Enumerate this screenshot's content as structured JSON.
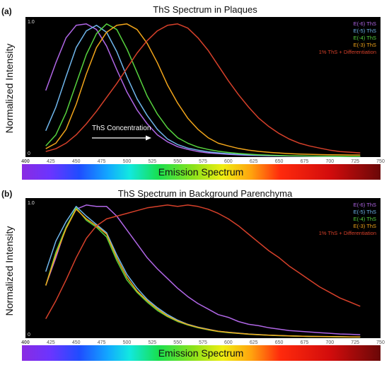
{
  "colors": {
    "E-6": "#b066e6",
    "E-5": "#6fb6ec",
    "E-4": "#56d23e",
    "E-3": "#f2a51a",
    "diff": "#d6402a"
  },
  "spectrum_label": "Emission Spectrum",
  "chart_data": [
    {
      "type": "line",
      "panel": "(a)",
      "title": "ThS Spectrum in Plaques",
      "xlabel": "",
      "ylabel": "Normalized Intensity",
      "xlim": [
        400,
        750
      ],
      "ylim": [
        0,
        1.0
      ],
      "x_ticks": [
        "400",
        "425",
        "450",
        "475",
        "500",
        "525",
        "550",
        "575",
        "600",
        "625",
        "650",
        "675",
        "700",
        "725",
        "750"
      ],
      "y_ticks": [
        "1.0",
        "0"
      ],
      "annotation": "ThS Concentration",
      "legend_position": "top-right",
      "x": [
        420,
        430,
        440,
        450,
        460,
        470,
        480,
        490,
        500,
        510,
        520,
        530,
        540,
        550,
        560,
        570,
        580,
        590,
        600,
        610,
        620,
        630,
        640,
        650,
        660,
        670,
        680,
        690,
        700,
        710,
        720,
        730
      ],
      "series": [
        {
          "name": "E(-6) ThS",
          "key": "E-6",
          "values": [
            0.48,
            0.68,
            0.86,
            0.95,
            0.96,
            0.92,
            0.8,
            0.63,
            0.47,
            0.34,
            0.24,
            0.16,
            0.11,
            0.075,
            0.055,
            0.04,
            0.03,
            0.025,
            0.02,
            0.016,
            0.013,
            0.011,
            0.009,
            0.008,
            0.007,
            0.006,
            0.005,
            0.005,
            0.004,
            0.004,
            0.003,
            0.003
          ]
        },
        {
          "name": "E(-5) ThS",
          "key": "E-5",
          "values": [
            0.19,
            0.36,
            0.58,
            0.79,
            0.91,
            0.95,
            0.9,
            0.76,
            0.58,
            0.42,
            0.3,
            0.2,
            0.13,
            0.09,
            0.065,
            0.05,
            0.038,
            0.03,
            0.024,
            0.02,
            0.016,
            0.013,
            0.011,
            0.009,
            0.008,
            0.007,
            0.006,
            0.005,
            0.005,
            0.004,
            0.004,
            0.003
          ]
        },
        {
          "name": "E(-4) ThS",
          "key": "E-4",
          "values": [
            0.08,
            0.16,
            0.32,
            0.53,
            0.74,
            0.89,
            0.96,
            0.92,
            0.78,
            0.61,
            0.44,
            0.31,
            0.21,
            0.14,
            0.1,
            0.072,
            0.055,
            0.042,
            0.033,
            0.026,
            0.021,
            0.017,
            0.014,
            0.011,
            0.009,
            0.008,
            0.007,
            0.006,
            0.005,
            0.005,
            0.004,
            0.004
          ]
        },
        {
          "name": "E(-3) ThS",
          "key": "E-3",
          "values": [
            0.06,
            0.1,
            0.2,
            0.38,
            0.6,
            0.79,
            0.9,
            0.95,
            0.96,
            0.92,
            0.82,
            0.68,
            0.52,
            0.39,
            0.28,
            0.2,
            0.14,
            0.1,
            0.08,
            0.062,
            0.05,
            0.041,
            0.034,
            0.029,
            0.025,
            0.022,
            0.02,
            0.018,
            0.017,
            0.016,
            0.015,
            0.015
          ]
        },
        {
          "name": "1% ThS + Differentiation",
          "key": "diff",
          "values": [
            0.04,
            0.06,
            0.1,
            0.16,
            0.24,
            0.33,
            0.43,
            0.53,
            0.64,
            0.75,
            0.84,
            0.91,
            0.95,
            0.96,
            0.93,
            0.86,
            0.77,
            0.66,
            0.55,
            0.45,
            0.36,
            0.28,
            0.22,
            0.17,
            0.13,
            0.1,
            0.08,
            0.065,
            0.05,
            0.04,
            0.035,
            0.03
          ]
        }
      ]
    },
    {
      "type": "line",
      "panel": "(b)",
      "title": "ThS Spectrum in Background Parenchyma",
      "xlabel": "",
      "ylabel": "Normalized Intensity",
      "xlim": [
        400,
        750
      ],
      "ylim": [
        0,
        1.0
      ],
      "x_ticks": [
        "400",
        "425",
        "450",
        "475",
        "500",
        "525",
        "550",
        "575",
        "600",
        "625",
        "650",
        "675",
        "700",
        "725",
        "750"
      ],
      "y_ticks": [
        "1.0",
        "0"
      ],
      "legend_position": "top-right",
      "x": [
        420,
        430,
        440,
        450,
        460,
        470,
        480,
        490,
        500,
        510,
        520,
        530,
        540,
        550,
        560,
        570,
        580,
        590,
        600,
        610,
        620,
        630,
        640,
        650,
        660,
        670,
        680,
        690,
        700,
        710,
        720,
        730
      ],
      "series": [
        {
          "name": "E(-6) ThS",
          "key": "E-6",
          "values": [
            0.38,
            0.58,
            0.8,
            0.93,
            0.96,
            0.95,
            0.95,
            0.88,
            0.78,
            0.68,
            0.58,
            0.5,
            0.43,
            0.36,
            0.3,
            0.25,
            0.21,
            0.17,
            0.15,
            0.12,
            0.1,
            0.09,
            0.075,
            0.065,
            0.055,
            0.05,
            0.045,
            0.04,
            0.035,
            0.03,
            0.028,
            0.025
          ]
        },
        {
          "name": "E(-5) ThS",
          "key": "E-5",
          "values": [
            0.48,
            0.7,
            0.84,
            0.95,
            0.88,
            0.82,
            0.76,
            0.6,
            0.46,
            0.36,
            0.28,
            0.22,
            0.17,
            0.13,
            0.1,
            0.08,
            0.065,
            0.05,
            0.043,
            0.036,
            0.03,
            0.026,
            0.022,
            0.019,
            0.017,
            0.015,
            0.013,
            0.012,
            0.011,
            0.01,
            0.009,
            0.008
          ]
        },
        {
          "name": "E(-4) ThS",
          "key": "E-4",
          "values": [
            0.38,
            0.62,
            0.8,
            0.94,
            0.85,
            0.8,
            0.73,
            0.56,
            0.42,
            0.33,
            0.26,
            0.2,
            0.155,
            0.12,
            0.095,
            0.075,
            0.06,
            0.048,
            0.04,
            0.034,
            0.028,
            0.024,
            0.021,
            0.018,
            0.016,
            0.014,
            0.012,
            0.011,
            0.01,
            0.009,
            0.008,
            0.008
          ]
        },
        {
          "name": "E(-3) ThS",
          "key": "E-3",
          "values": [
            0.38,
            0.6,
            0.79,
            0.93,
            0.86,
            0.81,
            0.75,
            0.58,
            0.44,
            0.34,
            0.27,
            0.21,
            0.16,
            0.125,
            0.098,
            0.078,
            0.062,
            0.05,
            0.042,
            0.035,
            0.029,
            0.025,
            0.022,
            0.019,
            0.017,
            0.015,
            0.013,
            0.012,
            0.011,
            0.01,
            0.009,
            0.009
          ]
        },
        {
          "name": "1% ThS + Differentiation",
          "key": "diff",
          "values": [
            0.14,
            0.27,
            0.42,
            0.58,
            0.72,
            0.81,
            0.86,
            0.88,
            0.9,
            0.92,
            0.94,
            0.95,
            0.96,
            0.95,
            0.96,
            0.95,
            0.93,
            0.9,
            0.86,
            0.81,
            0.75,
            0.69,
            0.63,
            0.58,
            0.52,
            0.47,
            0.42,
            0.37,
            0.33,
            0.29,
            0.26,
            0.23
          ]
        }
      ]
    }
  ]
}
